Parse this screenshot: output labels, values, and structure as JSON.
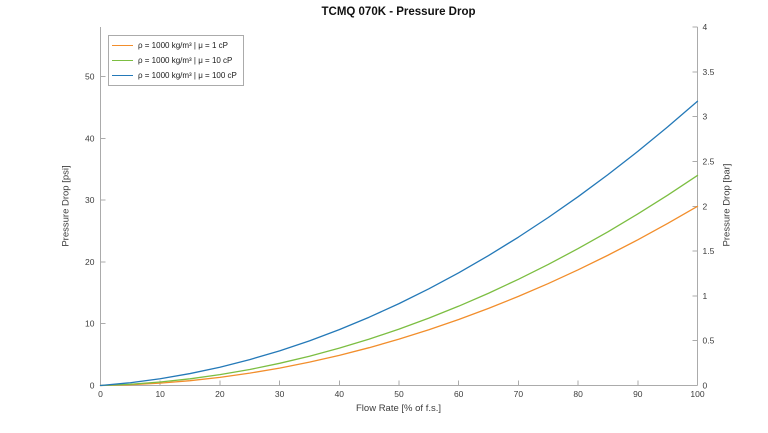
{
  "title": "TCMQ 070K - Pressure Drop",
  "axes": {
    "x": {
      "label": "Flow Rate [% of f.s.]",
      "tick_labels": [
        "0",
        "10",
        "20",
        "30",
        "40",
        "50",
        "60",
        "70",
        "80",
        "90",
        "100"
      ],
      "range": [
        0,
        100
      ]
    },
    "y_left": {
      "label": "Pressure Drop [psi]",
      "tick_labels": [
        "0",
        "10",
        "20",
        "30",
        "40",
        "50"
      ],
      "range_psi": [
        0,
        58.02
      ]
    },
    "y_right": {
      "label": "Pressure Drop [bar]",
      "tick_labels": [
        "0",
        "0.5",
        "1",
        "1.5",
        "2",
        "2.5",
        "3",
        "3.5",
        "4"
      ],
      "range_bar": [
        0,
        4
      ]
    }
  },
  "legend": {
    "position": "top-left",
    "items": [
      "ρ = 1000 kg/m³ | μ = 1 cP",
      "ρ = 1000 kg/m³ | μ = 10 cP",
      "ρ = 1000 kg/m³ | μ = 100 cP"
    ]
  },
  "style": {
    "axis_color": "#ababab",
    "tick_text_color": "#3c3c3c",
    "background": "#ffffff"
  },
  "chart_data": {
    "type": "line",
    "title": "TCMQ 070K - Pressure Drop",
    "xlabel": "Flow Rate [% of f.s.]",
    "ylabel_left": "Pressure Drop [psi]",
    "ylabel_right": "Pressure Drop [bar]",
    "xlim": [
      0,
      100
    ],
    "ylim_left_psi": [
      0,
      58.02
    ],
    "ylim_right_bar": [
      0,
      4
    ],
    "bar_per_psi": 0.06895,
    "grid": false,
    "legend_position": "top-left",
    "x": [
      0,
      5,
      10,
      15,
      20,
      25,
      30,
      35,
      40,
      45,
      50,
      55,
      60,
      65,
      70,
      75,
      80,
      85,
      90,
      95,
      100
    ],
    "series": [
      {
        "name": "ρ = 1000 kg/m³ | μ = 1 cP",
        "color": "#F28E2C",
        "values_psi": [
          0,
          0.12,
          0.38,
          0.78,
          1.32,
          2.0,
          2.82,
          3.78,
          4.88,
          6.12,
          7.5,
          9.02,
          10.68,
          12.48,
          14.42,
          16.5,
          18.72,
          21.08,
          23.58,
          26.22,
          29.0
        ]
      },
      {
        "name": "ρ = 1000 kg/m³ | μ = 10 cP",
        "color": "#7CBE42",
        "values_psi": [
          0,
          0.2,
          0.57,
          1.08,
          1.76,
          2.59,
          3.59,
          4.73,
          6.04,
          7.5,
          9.13,
          10.9,
          12.84,
          14.93,
          17.19,
          19.59,
          22.16,
          24.88,
          27.77,
          30.8,
          34.0
        ]
      },
      {
        "name": "ρ = 1000 kg/m³ | μ = 100 cP",
        "color": "#2479B8",
        "values_psi": [
          0,
          0.45,
          1.09,
          1.93,
          2.96,
          4.19,
          5.61,
          7.23,
          9.04,
          11.05,
          13.25,
          15.65,
          18.24,
          21.03,
          24.01,
          27.19,
          30.56,
          34.13,
          37.89,
          41.85,
          46.0
        ]
      }
    ]
  }
}
